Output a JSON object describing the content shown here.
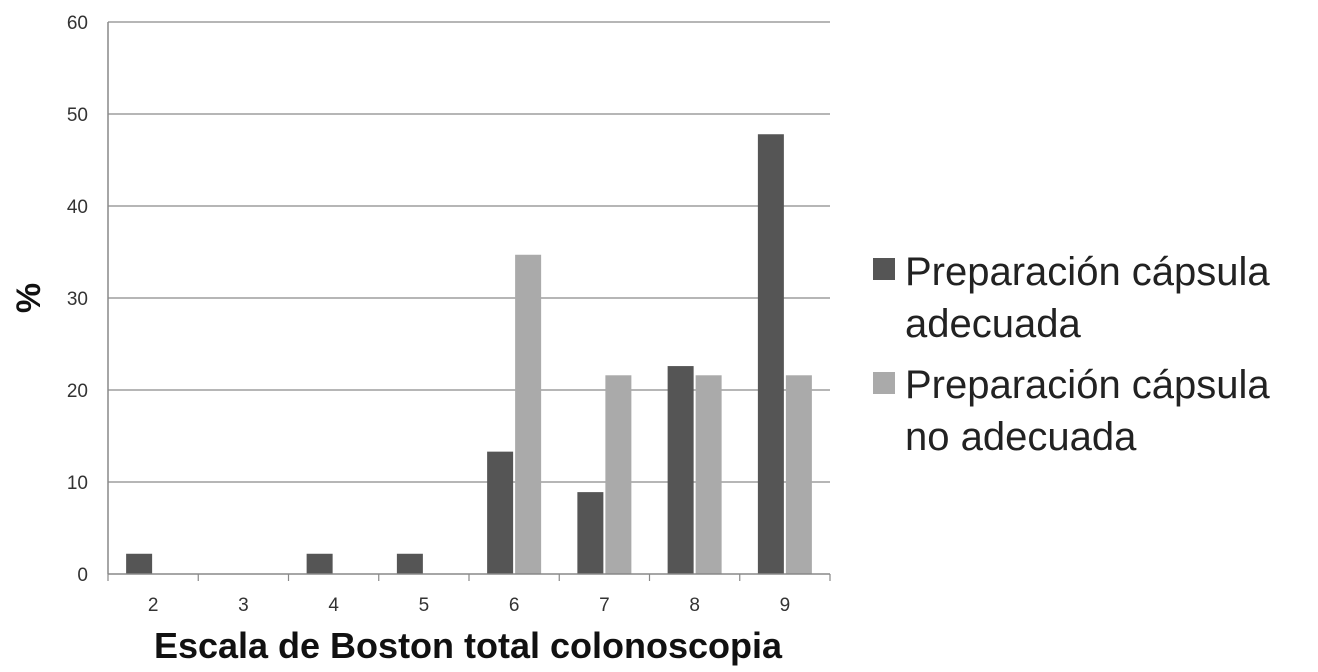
{
  "chart_data": {
    "type": "bar",
    "xlabel": "Escala de Boston total colonoscopia",
    "ylabel": "%",
    "categories": [
      "2",
      "3",
      "4",
      "5",
      "6",
      "7",
      "8",
      "9"
    ],
    "ylim": [
      0,
      60
    ],
    "yticks": [
      0,
      10,
      20,
      30,
      40,
      50,
      60
    ],
    "grid": true,
    "legend_position": "right",
    "series": [
      {
        "name_lines": [
          "Preparación cápsula",
          "adecuada"
        ],
        "color": "#555555",
        "values": [
          2.2,
          0,
          2.2,
          2.2,
          13.3,
          8.9,
          22.6,
          47.8
        ]
      },
      {
        "name_lines": [
          "Preparación cápsula",
          "no adecuada"
        ],
        "color": "#aaaaaa",
        "values": [
          0,
          0,
          0,
          0,
          34.7,
          21.6,
          21.6,
          21.6
        ]
      }
    ]
  }
}
